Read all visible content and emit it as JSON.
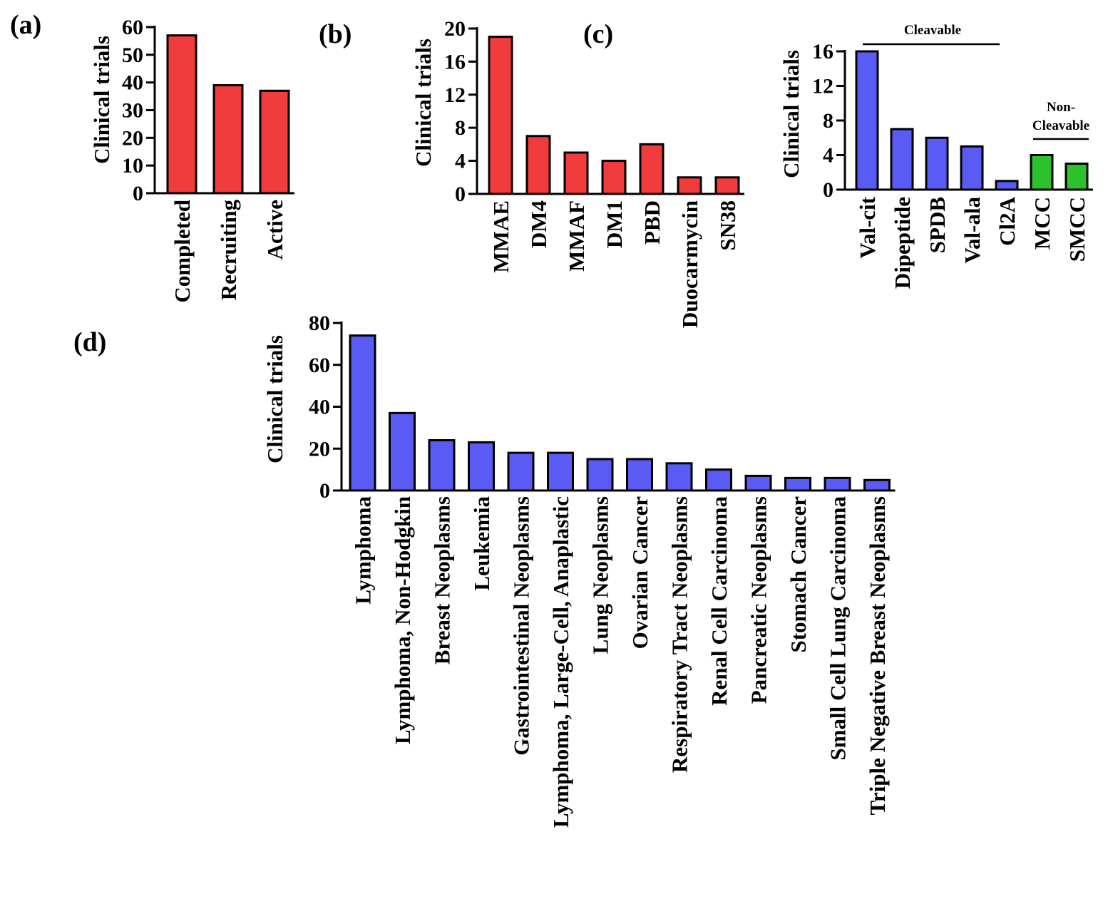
{
  "colors": {
    "red": "#f03c3c",
    "blue": "#5a5af5",
    "green": "#2ec12e",
    "stroke": "#000000"
  },
  "chart_data": [
    {
      "type": "bar",
      "panel": "(a)",
      "ylabel": "Clinical trials",
      "ylim": [
        0,
        60
      ],
      "yticks": [
        0,
        10,
        20,
        30,
        40,
        50,
        60
      ],
      "categories": [
        "Completed",
        "Recruiting",
        "Active"
      ],
      "values": [
        57,
        39,
        37
      ],
      "colors": [
        "red",
        "red",
        "red"
      ]
    },
    {
      "type": "bar",
      "panel": "(b)",
      "ylabel": "Clinical trials",
      "ylim": [
        0,
        20
      ],
      "yticks": [
        0,
        4,
        8,
        12,
        16,
        20
      ],
      "categories": [
        "MMAE",
        "DM4",
        "MMAF",
        "DM1",
        "PBD",
        "Duocarmycin",
        "SN38"
      ],
      "values": [
        19,
        7,
        5,
        4,
        6,
        2,
        2
      ],
      "colors": [
        "red",
        "red",
        "red",
        "red",
        "red",
        "red",
        "red"
      ]
    },
    {
      "type": "bar",
      "panel": "(c)",
      "ylabel": "Clinical trials",
      "ylim": [
        0,
        16
      ],
      "yticks": [
        0,
        4,
        8,
        12,
        16
      ],
      "categories": [
        "Val-cit",
        "Dipeptide",
        "SPDB",
        "Val-ala",
        "Cl2A",
        "MCC",
        "SMCC"
      ],
      "values": [
        16,
        7,
        6,
        5,
        1,
        4,
        3
      ],
      "colors": [
        "blue",
        "blue",
        "blue",
        "blue",
        "blue",
        "green",
        "green"
      ],
      "groups": [
        {
          "label": "Cleavable",
          "from": 0,
          "to": 4
        },
        {
          "label_lines": [
            "Non-",
            "Cleavable"
          ],
          "from": 5,
          "to": 6
        }
      ]
    },
    {
      "type": "bar",
      "panel": "(d)",
      "ylabel": "Clinical trials",
      "ylim": [
        0,
        80
      ],
      "yticks": [
        0,
        20,
        40,
        60,
        80
      ],
      "categories": [
        "Lymphoma",
        "Lymphoma, Non-Hodgkin",
        "Breast Neoplasms",
        "Leukemia",
        "Gastrointestinal Neoplasms",
        "Lymphoma, Large-Cell, Anaplastic",
        "Lung Neoplasms",
        "Ovarian Cancer",
        "Respiratory Tract Neoplasms",
        "Renal Cell Carcinoma",
        "Pancreatic Neoplasms",
        "Stomach Cancer",
        "Small Cell Lung Carcinoma",
        "Triple Negative Breast Neoplasms"
      ],
      "values": [
        74,
        37,
        24,
        23,
        18,
        18,
        15,
        15,
        13,
        10,
        7,
        6,
        6,
        5
      ],
      "colors": [
        "blue",
        "blue",
        "blue",
        "blue",
        "blue",
        "blue",
        "blue",
        "blue",
        "blue",
        "blue",
        "blue",
        "blue",
        "blue",
        "blue"
      ]
    }
  ]
}
